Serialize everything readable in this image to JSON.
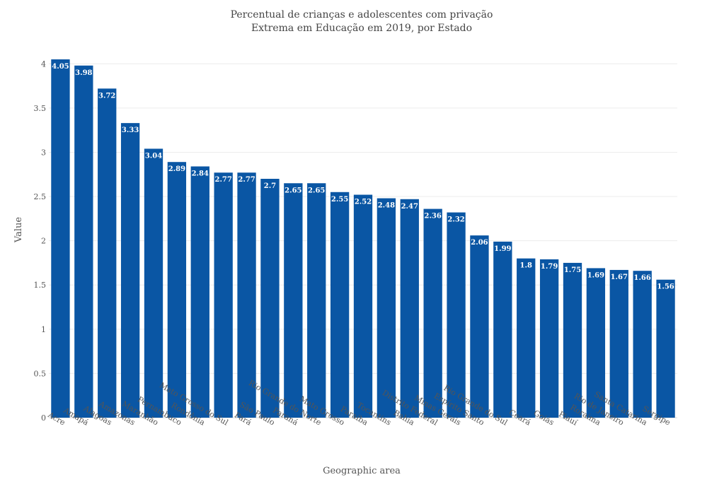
{
  "chart_data": {
    "type": "bar",
    "title_lines": [
      "Percentual de crianças e adolescentes com privação",
      "Extrema em Educação em 2019, por Estado"
    ],
    "xlabel": "Geographic area",
    "ylabel": "Value",
    "ylim": [
      0,
      4.05
    ],
    "yticks": [
      0,
      0.5,
      1,
      1.5,
      2,
      2.5,
      3,
      3.5,
      4
    ],
    "grid": true,
    "bar_color": "#0a56a4",
    "categories": [
      "Acre",
      "Amapá",
      "Alagoas",
      "Amazonas",
      "Maranhão",
      "Pernambuco",
      "Rondônia",
      "Mato Grosso do Sul",
      "Pará",
      "São Paulo",
      "Paraná",
      "Rio Grande do Norte",
      "Mato Grosso",
      "Paraíba",
      "Tocantins",
      "Bahia",
      "Distrito Federal",
      "Minas Gerais",
      "Espírito Santo",
      "Rio Grande do Sul",
      "Ceará",
      "Goiás",
      "Piauí",
      "Roraima",
      "Rio de Janeiro",
      "Santa Catarina",
      "Sergipe"
    ],
    "values": [
      4.05,
      3.98,
      3.72,
      3.33,
      3.04,
      2.89,
      2.84,
      2.77,
      2.77,
      2.7,
      2.65,
      2.65,
      2.55,
      2.52,
      2.48,
      2.47,
      2.36,
      2.32,
      2.06,
      1.99,
      1.8,
      1.79,
      1.75,
      1.69,
      1.67,
      1.66,
      1.56
    ]
  }
}
